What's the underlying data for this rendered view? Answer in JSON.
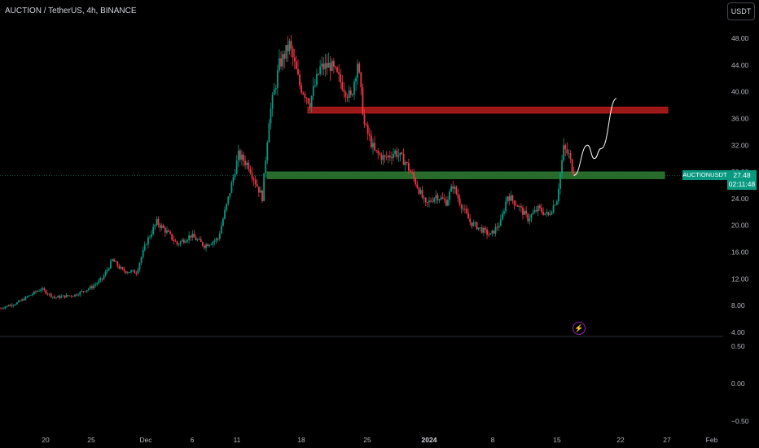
{
  "header": {
    "title": "AUCTION / TetherUS, 4h, BINANCE",
    "currency_button": "USDT"
  },
  "price_tag": {
    "symbol": "AUCTIONUSDT",
    "price": "27.48",
    "countdown": "02:11:48"
  },
  "colors": {
    "up": "#089981",
    "down": "#f23645",
    "resistance_zone": "#b71c1c",
    "support_zone": "#2e7d32",
    "grid": "#1e222d"
  },
  "chart_data": [
    {
      "type": "candlestick",
      "title": "",
      "y_axis": {
        "ticks": [
          "48.00",
          "44.00",
          "40.00",
          "36.00",
          "32.00",
          "28.00",
          "24.00",
          "20.00",
          "16.00",
          "12.00",
          "8.00",
          "4.00"
        ],
        "ylim": [
          4,
          50
        ]
      },
      "x_axis": {
        "ticks": [
          "20",
          "25",
          "Dec",
          "6",
          "11",
          "18",
          "25",
          "2024",
          "8",
          "15",
          "22",
          "27",
          "Feb"
        ],
        "bold_ticks": [
          "2024"
        ]
      },
      "price_path": [
        {
          "t": 0,
          "p": 7.6
        },
        {
          "t": 10,
          "p": 8.4
        },
        {
          "t": 18,
          "p": 9.6
        },
        {
          "t": 24,
          "p": 10.5
        },
        {
          "t": 32,
          "p": 9.2
        },
        {
          "t": 44,
          "p": 9.6
        },
        {
          "t": 54,
          "p": 10.8
        },
        {
          "t": 60,
          "p": 12.0
        },
        {
          "t": 66,
          "p": 14.8
        },
        {
          "t": 72,
          "p": 13.2
        },
        {
          "t": 80,
          "p": 13.0
        },
        {
          "t": 86,
          "p": 17.5
        },
        {
          "t": 92,
          "p": 20.5
        },
        {
          "t": 98,
          "p": 19.0
        },
        {
          "t": 104,
          "p": 17.2
        },
        {
          "t": 112,
          "p": 18.5
        },
        {
          "t": 120,
          "p": 17.0
        },
        {
          "t": 128,
          "p": 18.0
        },
        {
          "t": 134,
          "p": 24.0
        },
        {
          "t": 140,
          "p": 30.5
        },
        {
          "t": 146,
          "p": 29.0
        },
        {
          "t": 150,
          "p": 26.5
        },
        {
          "t": 154,
          "p": 24.2
        },
        {
          "t": 158,
          "p": 36.0
        },
        {
          "t": 164,
          "p": 44.0
        },
        {
          "t": 170,
          "p": 47.0
        },
        {
          "t": 176,
          "p": 41.0
        },
        {
          "t": 182,
          "p": 38.5
        },
        {
          "t": 188,
          "p": 43.5
        },
        {
          "t": 194,
          "p": 44.0
        },
        {
          "t": 200,
          "p": 41.5
        },
        {
          "t": 206,
          "p": 39.0
        },
        {
          "t": 210,
          "p": 44.5
        },
        {
          "t": 214,
          "p": 35.0
        },
        {
          "t": 220,
          "p": 31.0
        },
        {
          "t": 226,
          "p": 30.0
        },
        {
          "t": 232,
          "p": 31.0
        },
        {
          "t": 238,
          "p": 29.5
        },
        {
          "t": 244,
          "p": 26.5
        },
        {
          "t": 250,
          "p": 23.0
        },
        {
          "t": 256,
          "p": 24.5
        },
        {
          "t": 262,
          "p": 23.5
        },
        {
          "t": 266,
          "p": 26.0
        },
        {
          "t": 270,
          "p": 23.5
        },
        {
          "t": 276,
          "p": 20.5
        },
        {
          "t": 282,
          "p": 19.5
        },
        {
          "t": 288,
          "p": 18.5
        },
        {
          "t": 294,
          "p": 20.5
        },
        {
          "t": 298,
          "p": 24.5
        },
        {
          "t": 304,
          "p": 23.0
        },
        {
          "t": 310,
          "p": 21.0
        },
        {
          "t": 316,
          "p": 22.5
        },
        {
          "t": 322,
          "p": 21.5
        },
        {
          "t": 327,
          "p": 24.0
        },
        {
          "t": 331,
          "p": 31.5
        },
        {
          "t": 334,
          "p": 30.5
        },
        {
          "t": 337,
          "p": 27.48
        }
      ],
      "zones": [
        {
          "name": "",
          "role": "resistance",
          "low": 36.8,
          "high": 37.7
        },
        {
          "name": "",
          "role": "support",
          "low": 27.0,
          "high": 28.0
        }
      ],
      "projection": [
        {
          "t": 337,
          "p": 27.48
        },
        {
          "t": 345,
          "p": 32.0
        },
        {
          "t": 349,
          "p": 30.0
        },
        {
          "t": 353,
          "p": 31.5
        },
        {
          "t": 362,
          "p": 39.0
        }
      ],
      "current_price": 27.48,
      "grid": false,
      "legend": "none"
    },
    {
      "type": "line",
      "title": "",
      "y_axis": {
        "ticks": [
          "0.50",
          "0.00",
          "−0.50"
        ],
        "ylim": [
          -0.6,
          0.6
        ]
      },
      "series": [],
      "grid": false
    }
  ]
}
